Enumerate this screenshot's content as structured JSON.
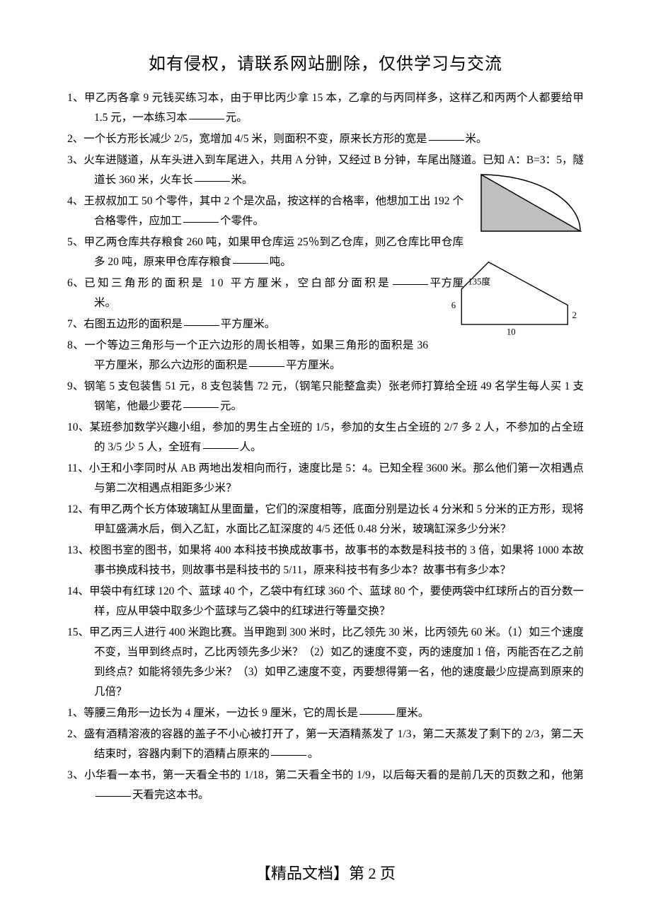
{
  "header": "如有侵权，请联系网站删除，仅供学习与交流",
  "footer": "【精品文档】第 2 页",
  "questions": [
    {
      "num": "1、",
      "text_parts": [
        "甲乙丙各拿 9 元钱买练习本，由于甲比丙少拿 15 本，乙拿的与丙同样多，这样乙和丙两个人都要给甲 1.5 元，一本练习本",
        "元。"
      ],
      "blanks": 1
    },
    {
      "num": "2、",
      "text_parts": [
        "一个长方形长减少 2/5，宽增加 4/5 米，则面积不变，原来长方形的宽是",
        "米。"
      ],
      "blanks": 1
    },
    {
      "num": "3、",
      "text_parts": [
        "火车进隧道，从车头进入到车尾进入，共用 A 分钟，又经过 B 分钟，车尾出隧道。已知 A：B=3：5，隧道长 360 米，火车长",
        "米。"
      ],
      "blanks": 1
    },
    {
      "num": "4、",
      "text_parts": [
        "王叔叔加工 50 个零件，其中 2 个是次品，按这样的合格率，他想加工出 192 个合格零件，应加工",
        "个零件。"
      ],
      "blanks": 1,
      "wrap": true
    },
    {
      "num": "5、",
      "text_parts": [
        "甲乙两仓库共存粮食 260 吨，如果甲仓库运 25％到乙仓库，则乙仓库比甲仓库多 20 吨，原来甲仓库存粮食",
        "吨。"
      ],
      "blanks": 1,
      "wrap": true
    },
    {
      "num": "6、",
      "text_parts": [
        "已知三角形的面积是 10 平方厘米，空白部分面积是",
        "平方厘米。"
      ],
      "blanks": 1,
      "wrap": true,
      "spaced": true
    },
    {
      "num": "7、",
      "text_parts": [
        "右图五边形的面积是",
        "平方厘米。"
      ],
      "blanks": 1,
      "wrap2": true
    },
    {
      "num": "8、",
      "text_parts": [
        "一个等边三角形与一个正六边形的周长相等，如果三角形的面积是 36 平方厘米，那么六边形的面积是",
        "平方厘米。"
      ],
      "blanks": 1,
      "wrap2": true
    },
    {
      "num": "9、",
      "text_parts": [
        "钢笔 5 支包装售 51 元，8 支包装售 72 元，（钢笔只能整盒卖）张老师打算给全班 49 名学生每人买 1 支钢笔，他最少要花",
        "元。"
      ],
      "blanks": 1
    },
    {
      "num": "10、",
      "text_parts": [
        "某班参加数学兴趣小组，参加的男生占全班的 1/5，参加的女生占全班的 2/7 多 2 人，不参加的占全班的 3/5 少 5 人，全班有",
        "人。"
      ],
      "blanks": 1
    },
    {
      "num": "11、",
      "text_parts": [
        "小王和小李同时从 AB 两地出发相向而行，速度比是 5：4。已知全程 3600 米。那么他们第一次相遇点与第二次相遇点相距多少米？"
      ],
      "blanks": 0
    },
    {
      "num": "12、",
      "text_parts": [
        "有甲乙两个长方体玻璃缸从里面量，它们的深度相等，底面分别是边长 4 分米和 5 分米的正方形，现将甲缸盛满水后，倒入乙缸，水面比乙缸深度的 4/5 还低 0.48 分米，玻璃缸深多少分米？"
      ],
      "blanks": 0
    },
    {
      "num": "13、",
      "text_parts": [
        "校图书室的图书，如果将 400 本科技书换成故事书，故事书的本数是科技书的 3 倍，如果将 1000 本故事书换成科技书，则故事书是科技书的 5/11，原来科技书有多少本？故事书有多少本？"
      ],
      "blanks": 0
    },
    {
      "num": "14、",
      "text_parts": [
        "甲袋中有红球 120 个、蓝球 40 个，乙袋中有红球 360 个、蓝球 80 个，要使两袋中红球所占的百分数一样，应从甲袋中取多少个蓝球与乙袋中的红球进行等量交换？"
      ],
      "blanks": 0
    },
    {
      "num": "15、",
      "text_parts": [
        "甲乙丙三人进行 400 米跑比赛。当甲跑到 300 米时，比乙领先 30 米，比丙领先 60 米。（1）如三个速度不变，当甲到终点时，乙比丙领先多少米？（2）如乙的速度不变，丙的速度加 1 倍，丙能否在乙之前到终点？如能将领先多少米？（3）如甲乙速度不变，丙要想得第一名，他的速度最少应提高到原来的几倍？"
      ],
      "blanks": 0
    },
    {
      "num": "1、",
      "text_parts": [
        "等腰三角形一边长为 4 厘米，一边长 9 厘米，它的周长是",
        "厘米。"
      ],
      "blanks": 1
    },
    {
      "num": "2、",
      "text_parts": [
        "盛有酒精溶液的容器的盖子不小心被打开了，第一天酒精蒸发了 1/3，第二天蒸发了剩下的 2/3，第二天结束时，容器内剩下的酒精占原来的",
        "。"
      ],
      "blanks": 1
    },
    {
      "num": "3、",
      "text_parts": [
        "小华看一本书，第一天看全书的 1/18，第二天看全书的 1/9，以后每天看的是前几天的页数之和，他第",
        "天看完这本书。"
      ],
      "blanks": 1
    }
  ],
  "figure1": {
    "fill_color": "#bfbfbf",
    "stroke_color": "#000000",
    "stroke_width": 1.5
  },
  "figure2": {
    "angle_label": "135度",
    "left_label": "6",
    "right_label": "2",
    "bottom_label": "10",
    "stroke_color": "#000000",
    "stroke_width": 1.5,
    "label_fontsize": 14
  }
}
